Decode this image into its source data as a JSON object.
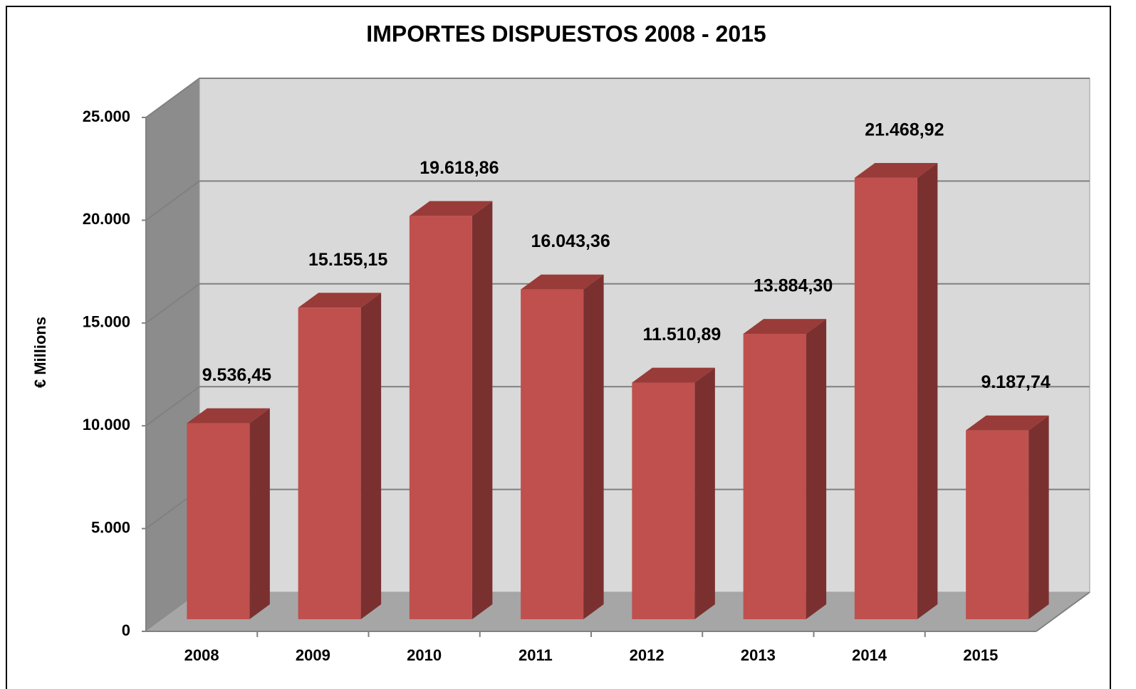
{
  "chart_data": {
    "type": "bar3d",
    "title": "IMPORTES DISPUESTOS 2008 - 2015",
    "y_label": "€ Millions",
    "categories": [
      "2008",
      "2009",
      "2010",
      "2011",
      "2012",
      "2013",
      "2014",
      "2015"
    ],
    "values": [
      9536.45,
      15155.15,
      19618.86,
      16043.36,
      11510.89,
      13884.3,
      21468.92,
      9187.74
    ],
    "value_labels": [
      "9.536,45",
      "15.155,15",
      "19.618,86",
      "16.043,36",
      "11.510,89",
      "13.884,30",
      "21.468,92",
      "9.187,74"
    ],
    "color": "#c0504d",
    "ylim": [
      0,
      25000
    ],
    "yticks": [
      0,
      {
        "value": 5000,
        "label": "5.000"
      },
      {
        "value": 10000,
        "label": "10.000"
      },
      {
        "value": 15000,
        "label": "15.000"
      },
      {
        "value": 20000,
        "label": "20.000"
      },
      {
        "value": 25000,
        "label": "25.000"
      }
    ],
    "grid": true
  }
}
